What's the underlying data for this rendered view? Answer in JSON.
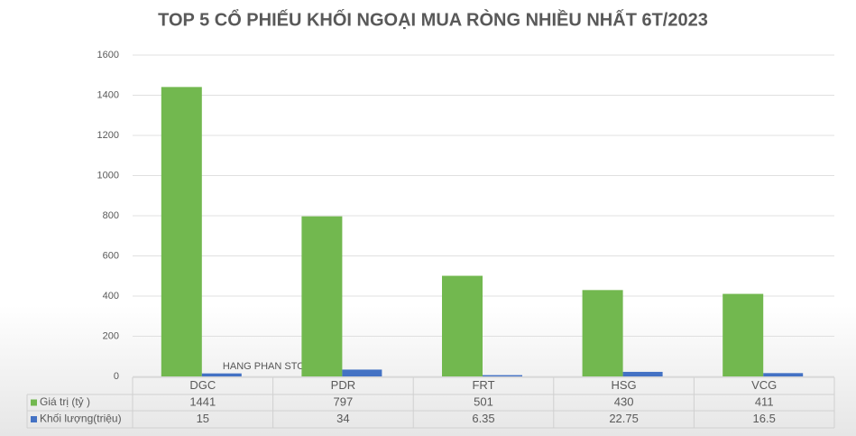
{
  "chart_data": {
    "type": "bar",
    "title": "TOP 5 CỔ PHIẾU KHỐI NGOẠI MUA RÒNG NHIỀU NHẤT 6T/2023",
    "watermark": "HANG PHAN STOCK",
    "categories": [
      "DGC",
      "PDR",
      "FRT",
      "HSG",
      "VCG"
    ],
    "series": [
      {
        "name": "Giá trị (tỷ )",
        "color": "#72b84f",
        "values": [
          1441,
          797,
          501,
          430,
          411
        ]
      },
      {
        "name": "Khối lượng(triệu)",
        "color": "#4472c4",
        "values": [
          15,
          34,
          6.35,
          22.75,
          16.5
        ]
      }
    ],
    "ylim": [
      0,
      1600
    ],
    "yticks": [
      0,
      200,
      400,
      600,
      800,
      1000,
      1200,
      1400,
      1600
    ],
    "grid": true
  }
}
